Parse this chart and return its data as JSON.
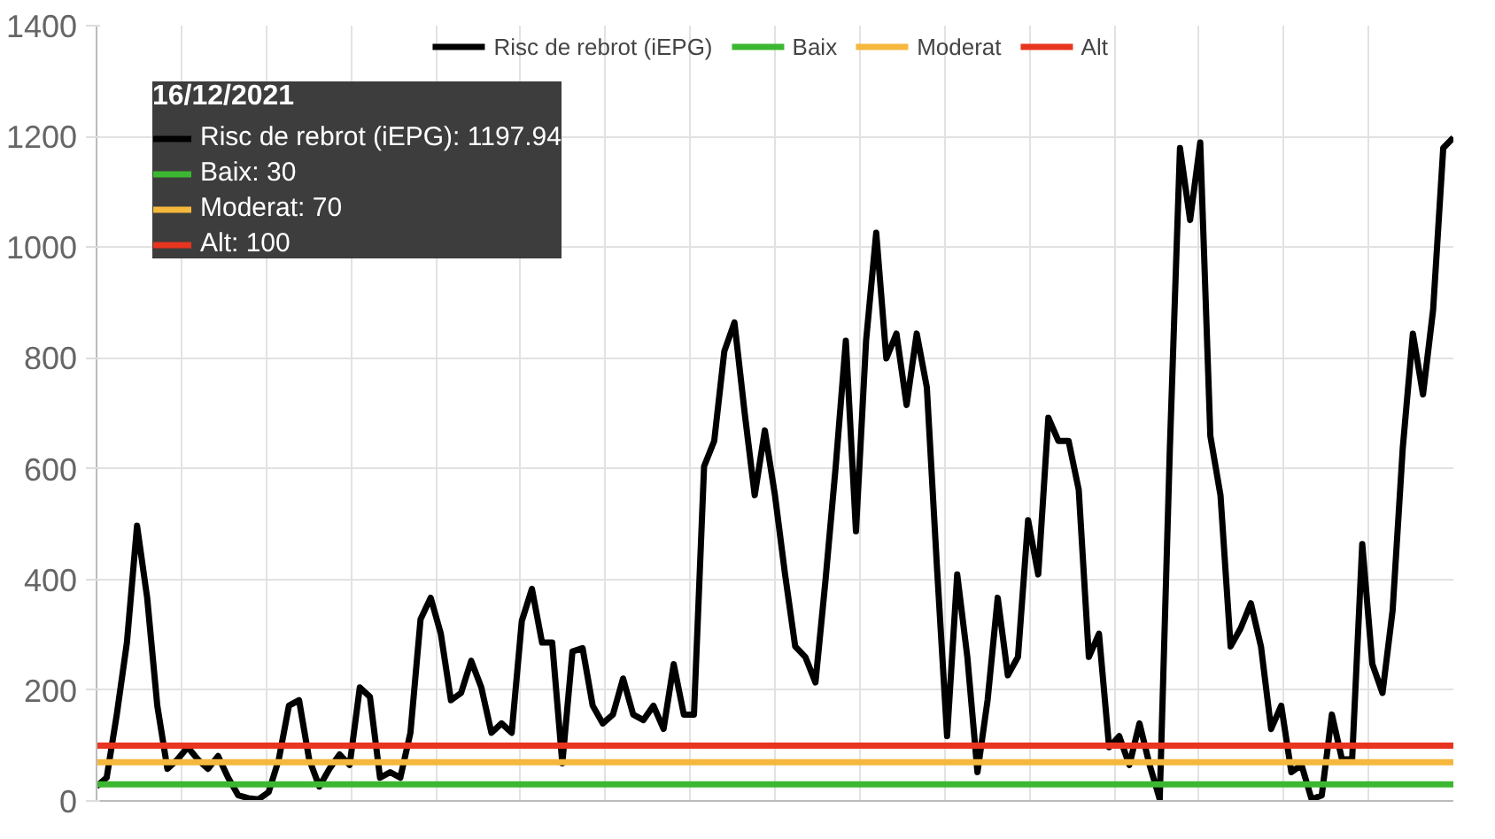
{
  "chart_data": {
    "type": "line",
    "categories": [
      null,
      null,
      null,
      null,
      null,
      null,
      null,
      null,
      null,
      null,
      null,
      null,
      null,
      null,
      null,
      null,
      null,
      null,
      null,
      null,
      null,
      null,
      null,
      null,
      null,
      null,
      null,
      null,
      null,
      null,
      null,
      null,
      null,
      null,
      null,
      null,
      null,
      null,
      null,
      null,
      null,
      null,
      null,
      null,
      null,
      null,
      null,
      null,
      null,
      null,
      null,
      null,
      null,
      null,
      null,
      null,
      null,
      null,
      null,
      null,
      null,
      null,
      null,
      null,
      null,
      null,
      null,
      null,
      null,
      null,
      null,
      null,
      null,
      null,
      null,
      null,
      null,
      null,
      null,
      null,
      null,
      null,
      null,
      null,
      null,
      null,
      null,
      null,
      null,
      null,
      null,
      null,
      null,
      null,
      null,
      null,
      null,
      null,
      null,
      null,
      null,
      null,
      null,
      null,
      null,
      null,
      null,
      null,
      null,
      null,
      null,
      null,
      null,
      null,
      null,
      null,
      null,
      null,
      null,
      null,
      null,
      null,
      null,
      null,
      null,
      null,
      null,
      null,
      null,
      null,
      null,
      null,
      null,
      null,
      null
    ],
    "series": [
      {
        "name": "Risc de rebrot (iEPG)",
        "color": "#000000",
        "values": [
          26,
          42,
          156,
          286,
          497,
          367,
          172,
          58,
          75,
          97,
          75,
          58,
          81,
          42,
          10,
          5,
          3,
          16,
          75,
          172,
          182,
          75,
          26,
          58,
          84,
          65,
          205,
          188,
          42,
          52,
          42,
          123,
          328,
          367,
          302,
          182,
          195,
          253,
          205,
          123,
          140,
          123,
          325,
          383,
          286,
          286,
          68,
          270,
          276,
          172,
          140,
          156,
          221,
          156,
          146,
          172,
          130,
          247,
          156,
          156,
          604,
          650,
          812,
          864,
          702,
          552,
          669,
          552,
          409,
          279,
          260,
          214,
          400,
          604,
          831,
          487,
          831,
          1026,
          799,
          844,
          715,
          844,
          747,
          422,
          117,
          409,
          260,
          52,
          182,
          367,
          227,
          260,
          507,
          409,
          692,
          650,
          650,
          562,
          260,
          302,
          97,
          117,
          65,
          140,
          65,
          3,
          637,
          1179,
          1049,
          1189,
          659,
          552,
          279,
          312,
          357,
          279,
          130,
          172,
          52,
          65,
          3,
          10,
          156,
          75,
          75,
          464,
          247,
          195,
          344,
          637,
          844,
          734,
          887,
          1179,
          1197.94
        ]
      }
    ],
    "ref_lines": [
      {
        "axis": "y",
        "value": 30,
        "label": "Baix",
        "color": "#3cb731"
      },
      {
        "axis": "y",
        "value": 70,
        "label": "Moderat",
        "color": "#f5b83d"
      },
      {
        "axis": "y",
        "value": 100,
        "label": "Alt",
        "color": "#e8351f"
      }
    ],
    "ylim": [
      0,
      1400
    ],
    "yticks": [
      0,
      200,
      400,
      600,
      800,
      1000,
      1200,
      1400
    ],
    "tick_labels": "y",
    "grid": true,
    "legend": "top",
    "marker": "none",
    "line_style": "solid",
    "annotations": [
      "16/12/2021",
      "Risc de rebrot (iEPG): 1197.94",
      "Baix: 30",
      "Moderat: 70",
      "Alt: 100"
    ]
  }
}
